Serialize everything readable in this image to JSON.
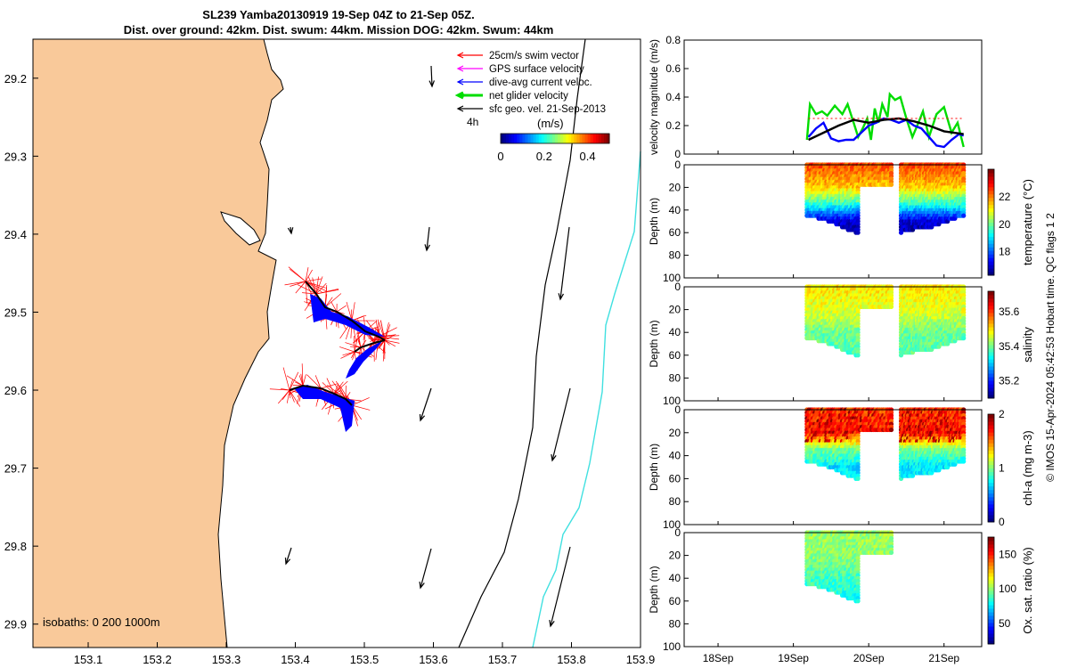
{
  "header": {
    "line1": "SL239 Yamba20130919 19-Sep 04Z to 21-Sep 05Z.",
    "line2": "Dist. over ground: 42km. Dist. swum: 44km. Mission DOG: 42km. Swum: 44km"
  },
  "map": {
    "lat_ticks": [
      "29.2",
      "29.3",
      "29.4",
      "29.5",
      "29.6",
      "29.7",
      "29.8",
      "29.9"
    ],
    "lon_ticks": [
      "153.1",
      "153.2",
      "153.3",
      "153.4",
      "153.5",
      "153.6",
      "153.7",
      "153.8",
      "153.9"
    ],
    "xlim": [
      153.02,
      153.9
    ],
    "ylim": [
      29.15,
      29.93
    ],
    "y_reversed": true,
    "isobaths_label": "isobaths: 0   200   1000m",
    "legend": [
      {
        "label": "25cm/s swim vector",
        "color": "#ff0000"
      },
      {
        "label": "GPS surface velocity",
        "color": "#ff00ff"
      },
      {
        "label": "dive-avg current veloc.",
        "color": "#0000ff"
      },
      {
        "label": "net glider velocity",
        "color": "#00dd00"
      },
      {
        "label": "sfc geo. vel. 21-Sep-2013",
        "color": "#000000"
      }
    ],
    "time_label": "4h",
    "colorbar": {
      "unit": "(m/s)",
      "ticks": [
        "0",
        "0.2",
        "0.4"
      ],
      "range": [
        0,
        0.5
      ]
    },
    "land_color": "#f9c99a",
    "colors": {
      "track": "#000000",
      "swim": "#ff0000",
      "current": "#0000ff",
      "isobath1000": "#40e0e0"
    }
  },
  "time_axis": {
    "ticks": [
      "18Sep",
      "19Sep",
      "20Sep",
      "21Sep"
    ],
    "range_days": [
      17.55,
      21.5
    ]
  },
  "chart_data": [
    {
      "type": "line",
      "title": "",
      "ylabel": "velocity magnitude (m/s)",
      "ylim": [
        0,
        0.8
      ],
      "yticks": [
        "0",
        "0.2",
        "0.4",
        "0.6",
        "0.8"
      ],
      "x_unit": "day of September 2013",
      "series": [
        {
          "color": "#00dd00",
          "x": [
            19.18,
            19.22,
            19.3,
            19.38,
            19.45,
            19.55,
            19.65,
            19.72,
            19.8,
            19.86,
            19.92,
            19.98,
            20.03,
            20.08,
            20.13,
            20.18,
            20.25,
            20.28,
            20.35,
            20.42,
            20.5,
            20.58,
            20.66,
            20.72,
            20.8,
            20.9,
            21.0,
            21.1,
            21.18,
            21.26
          ],
          "y": [
            0.1,
            0.35,
            0.28,
            0.3,
            0.27,
            0.34,
            0.28,
            0.35,
            0.22,
            0.12,
            0.18,
            0.25,
            0.1,
            0.32,
            0.22,
            0.35,
            0.26,
            0.42,
            0.38,
            0.4,
            0.25,
            0.12,
            0.22,
            0.3,
            0.12,
            0.28,
            0.33,
            0.15,
            0.22,
            0.05
          ]
        },
        {
          "color": "#0000ff",
          "x": [
            19.2,
            19.3,
            19.4,
            19.5,
            19.6,
            19.7,
            19.8,
            19.9,
            20.0,
            20.1,
            20.2,
            20.3,
            20.4,
            20.5,
            20.6,
            20.7,
            20.8,
            20.9,
            21.0,
            21.1,
            21.2,
            21.26
          ],
          "y": [
            0.12,
            0.18,
            0.22,
            0.11,
            0.09,
            0.1,
            0.1,
            0.15,
            0.2,
            0.22,
            0.25,
            0.24,
            0.22,
            0.24,
            0.2,
            0.18,
            0.12,
            0.06,
            0.05,
            0.1,
            0.14,
            0.13
          ]
        },
        {
          "color": "#000000",
          "x": [
            19.2,
            19.4,
            19.6,
            19.8,
            20.0,
            20.2,
            20.4,
            20.6,
            20.8,
            21.0,
            21.26
          ],
          "y": [
            0.1,
            0.15,
            0.2,
            0.24,
            0.22,
            0.24,
            0.25,
            0.23,
            0.2,
            0.16,
            0.14
          ]
        },
        {
          "color": "#ff0000",
          "x": [
            19.2,
            21.26
          ],
          "y": [
            0.25,
            0.25
          ]
        }
      ]
    },
    {
      "type": "heatmap",
      "ylabel": "Depth (m)",
      "ylim": [
        100,
        0
      ],
      "yticks": [
        "0",
        "20",
        "40",
        "60",
        "80",
        "100"
      ],
      "clabel": "temperature (°C)",
      "cticks": [
        "18",
        "20",
        "22"
      ],
      "crange": [
        16.3,
        24
      ],
      "segments": [
        {
          "start": 19.18,
          "end": 20.3,
          "notch_start": 19.88,
          "notch_depth": 18,
          "bottom": [
            45,
            50,
            58,
            65,
            60
          ]
        },
        {
          "start": 20.43,
          "end": 21.26,
          "bottom": [
            60,
            57,
            55,
            50,
            45
          ]
        }
      ],
      "profile": [
        {
          "d": 0,
          "v": 22.5
        },
        {
          "d": 20,
          "v": 21.5
        },
        {
          "d": 35,
          "v": 19.5
        },
        {
          "d": 50,
          "v": 17
        },
        {
          "d": 65,
          "v": 16.5
        }
      ]
    },
    {
      "type": "heatmap",
      "ylabel": "Depth (m)",
      "ylim": [
        100,
        0
      ],
      "yticks": [
        "0",
        "20",
        "40",
        "60",
        "80",
        "100"
      ],
      "clabel": "salinity",
      "cticks": [
        "35.2",
        "35.4",
        "35.6"
      ],
      "crange": [
        35.1,
        35.72
      ],
      "segments": [
        {
          "start": 19.18,
          "end": 20.3,
          "notch_start": 19.88,
          "notch_depth": 18,
          "bottom": [
            45,
            50,
            58,
            65,
            60
          ]
        },
        {
          "start": 20.43,
          "end": 21.26,
          "bottom": [
            60,
            57,
            55,
            50,
            45
          ]
        }
      ],
      "profile": [
        {
          "d": 0,
          "v": 35.5
        },
        {
          "d": 25,
          "v": 35.46
        },
        {
          "d": 40,
          "v": 35.4
        },
        {
          "d": 60,
          "v": 35.38
        }
      ]
    },
    {
      "type": "heatmap",
      "ylabel": "Depth (m)",
      "ylim": [
        100,
        0
      ],
      "yticks": [
        "0",
        "20",
        "40",
        "60",
        "80",
        "100"
      ],
      "clabel": "chl-a (mg m-3)",
      "cticks": [
        "0",
        "1",
        "2"
      ],
      "crange": [
        0,
        2
      ],
      "segments": [
        {
          "start": 19.18,
          "end": 20.3,
          "notch_start": 19.88,
          "notch_depth": 18,
          "bottom": [
            45,
            50,
            58,
            65,
            60
          ]
        },
        {
          "start": 20.43,
          "end": 21.26,
          "bottom": [
            60,
            57,
            55,
            50,
            45
          ]
        }
      ],
      "profile": [
        {
          "d": 0,
          "v": 1.6
        },
        {
          "d": 20,
          "v": 1.7
        },
        {
          "d": 35,
          "v": 1.0
        },
        {
          "d": 50,
          "v": 0.7
        },
        {
          "d": 65,
          "v": 0.8
        }
      ]
    },
    {
      "type": "heatmap",
      "ylabel": "Depth (m)",
      "ylim": [
        100,
        0
      ],
      "yticks": [
        "0",
        "20",
        "40",
        "60",
        "80",
        "100"
      ],
      "clabel": "Ox. sat. ratio (%)",
      "cticks": [
        "50",
        "100",
        "150"
      ],
      "crange": [
        20,
        175
      ],
      "segments": [
        {
          "start": 19.18,
          "end": 20.3,
          "notch_start": 19.88,
          "notch_depth": 18,
          "bottom": [
            45,
            50,
            58,
            65,
            60
          ]
        }
      ],
      "profile": [
        {
          "d": 0,
          "v": 102
        },
        {
          "d": 20,
          "v": 100
        },
        {
          "d": 40,
          "v": 88
        },
        {
          "d": 60,
          "v": 80
        }
      ]
    }
  ],
  "credit": "© IMOS 15-Apr-2024 05:42:53 Hobart time. QC flags 1  2"
}
